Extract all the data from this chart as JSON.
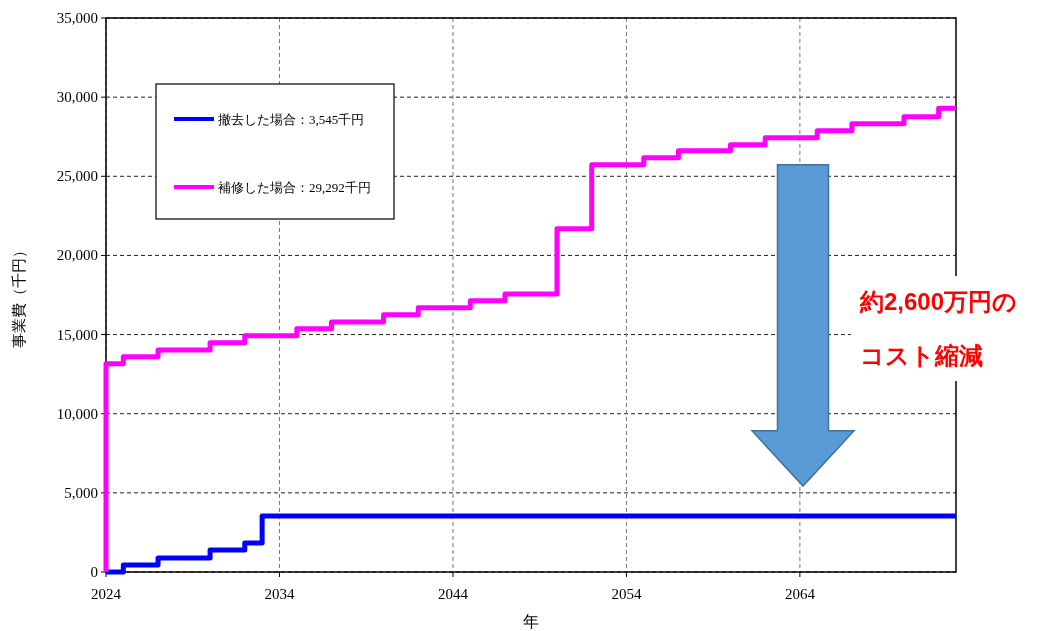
{
  "chart_data": {
    "type": "step",
    "xlabel": "年",
    "ylabel": "事業費（千円）",
    "xlim": [
      2024,
      2073
    ],
    "xticks": [
      2024,
      2034,
      2044,
      2054,
      2064
    ],
    "ylim": [
      0,
      35000
    ],
    "yticks": [
      {
        "value": 0,
        "label": "0"
      },
      {
        "value": 5000,
        "label": "5,000"
      },
      {
        "value": 10000,
        "label": "10,000"
      },
      {
        "value": 15000,
        "label": "15,000"
      },
      {
        "value": 20000,
        "label": "20,000"
      },
      {
        "value": 25000,
        "label": "25,000"
      },
      {
        "value": 30000,
        "label": "30,000"
      },
      {
        "value": 35000,
        "label": "35,000"
      }
    ],
    "grid": true,
    "legend": "top left",
    "line_style": "solid",
    "series": [
      {
        "name": "撤去した場合：3,545千円",
        "color": "#0000ff",
        "x": [
          2024,
          2025,
          2027,
          2030,
          2032,
          2033,
          2073
        ],
        "values": [
          0,
          440,
          880,
          1390,
          1830,
          3545,
          3545
        ]
      },
      {
        "name": "補修した場合：29,292千円",
        "color": "#ff00ff",
        "x": [
          2024,
          2024,
          2025,
          2027,
          2030,
          2032,
          2035,
          2037,
          2040,
          2042,
          2045,
          2047,
          2050,
          2052,
          2055,
          2057,
          2060,
          2062,
          2065,
          2067,
          2070,
          2072,
          2073
        ],
        "values": [
          0,
          13150,
          13600,
          14030,
          14480,
          14920,
          15360,
          15800,
          16250,
          16690,
          17130,
          17570,
          21680,
          25730,
          26170,
          26610,
          26990,
          27430,
          27880,
          28320,
          28760,
          29292,
          29292
        ]
      }
    ],
    "annotations": [
      "約2,600万円の",
      "コスト縮減"
    ]
  }
}
